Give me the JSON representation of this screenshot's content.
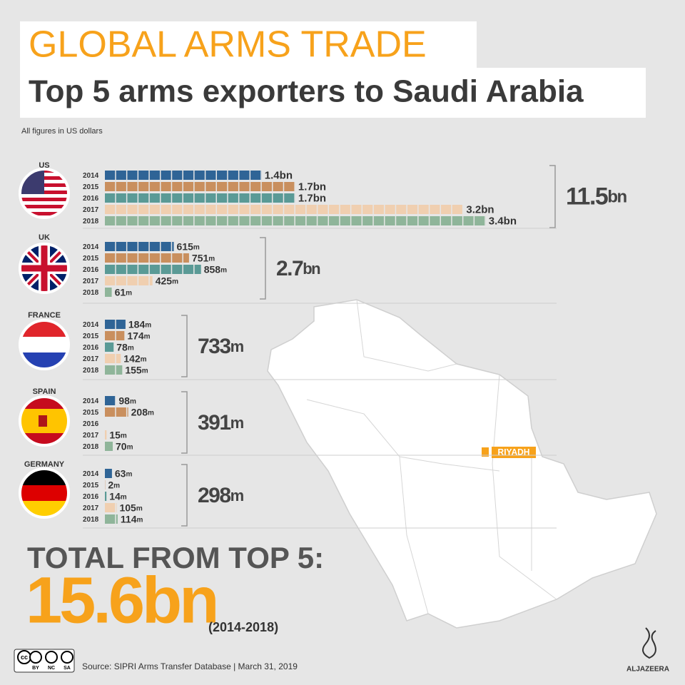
{
  "chart_data": {
    "type": "bar",
    "title": "GLOBAL ARMS TRADE",
    "subtitle": "Top 5 arms exporters to Saudi Arabia",
    "note": "All figures in US dollars",
    "categories": [
      "2014",
      "2015",
      "2016",
      "2017",
      "2018"
    ],
    "colors": [
      "#2f6496",
      "#c98f5e",
      "#5a9a96",
      "#f0cfb0",
      "#8fb59a"
    ],
    "groups": [
      {
        "name": "US",
        "values": [
          1400,
          1700,
          1700,
          3200,
          3400
        ],
        "value_labels": [
          "1.4bn",
          "1.7bn",
          "1.7bn",
          "3.2bn",
          "3.4bn"
        ],
        "total": "11.5bn"
      },
      {
        "name": "UK",
        "values": [
          615,
          751,
          858,
          425,
          61
        ],
        "value_labels": [
          "615m",
          "751m",
          "858m",
          "425m",
          "61m"
        ],
        "total": "2.7bn"
      },
      {
        "name": "FRANCE",
        "values": [
          184,
          174,
          78,
          142,
          155
        ],
        "value_labels": [
          "184m",
          "174m",
          "78m",
          "142m",
          "155m"
        ],
        "total": "733m"
      },
      {
        "name": "SPAIN",
        "values": [
          98,
          208,
          null,
          15,
          70
        ],
        "value_labels": [
          "98m",
          "208m",
          null,
          "15m",
          "70m"
        ],
        "total": "391m"
      },
      {
        "name": "GERMANY",
        "values": [
          63,
          2,
          14,
          105,
          114
        ],
        "value_labels": [
          "63m",
          "2m",
          "14m",
          "105m",
          "114m"
        ],
        "total": "298m"
      }
    ],
    "total_heading": "TOTAL FROM TOP 5:",
    "grand_total": "15.6bn",
    "period": "(2014-2018)",
    "map_label": "RIYADH",
    "source": "Source: SIPRI Arms Transfer Database | March 31, 2019",
    "license": [
      "BY",
      "NC",
      "SA"
    ],
    "brand": "ALJAZEERA"
  }
}
